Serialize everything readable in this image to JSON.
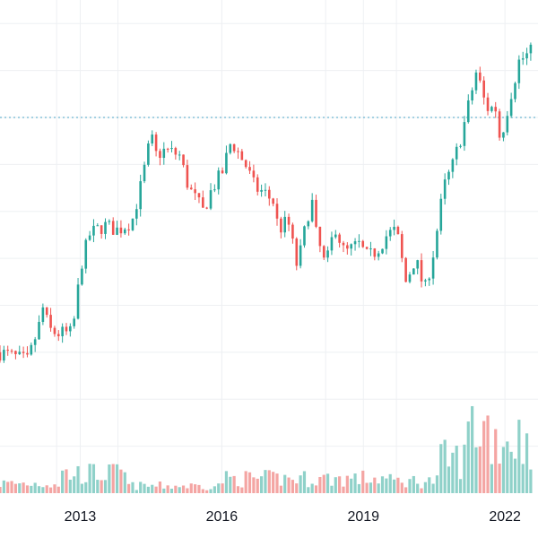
{
  "colors": {
    "up": "#26a69a",
    "down": "#ef5350",
    "up_volume": "#8fd1c9",
    "down_volume": "#f4a5a3",
    "grid": "#eef0f3",
    "price_line": "#4aa3c5",
    "background": "#ffffff",
    "text": "#131722"
  },
  "chart_data": {
    "type": "candlestick",
    "title": "",
    "xlabel": "",
    "ylabel": "",
    "grid": true,
    "x_ticks": [
      {
        "label": "2013",
        "x": 2013.0
      },
      {
        "label": "2016",
        "x": 2016.0
      },
      {
        "label": "2019",
        "x": 2019.0
      },
      {
        "label": "2022",
        "x": 2022.0
      }
    ],
    "xlim": [
      2011.3,
      2022.7
    ],
    "ylim": [
      0,
      105
    ],
    "volume_ylim": [
      0,
      100
    ],
    "current_price_line": 80,
    "anchors": [
      [
        2011.3,
        30
      ],
      [
        2011.9,
        28
      ],
      [
        2011.95,
        30
      ],
      [
        2012.2,
        38
      ],
      [
        2012.25,
        45
      ],
      [
        2012.3,
        35
      ],
      [
        2012.5,
        34
      ],
      [
        2012.8,
        34
      ],
      [
        2012.9,
        38
      ],
      [
        2013.0,
        48
      ],
      [
        2013.2,
        55
      ],
      [
        2013.5,
        57
      ],
      [
        2013.8,
        56
      ],
      [
        2014.1,
        58
      ],
      [
        2014.3,
        66
      ],
      [
        2014.5,
        76
      ],
      [
        2014.6,
        72
      ],
      [
        2014.8,
        73
      ],
      [
        2015.1,
        72
      ],
      [
        2015.3,
        65
      ],
      [
        2015.6,
        60
      ],
      [
        2015.8,
        65
      ],
      [
        2016.0,
        68
      ],
      [
        2016.2,
        75
      ],
      [
        2016.5,
        70
      ],
      [
        2016.7,
        65
      ],
      [
        2016.9,
        64
      ],
      [
        2017.1,
        62
      ],
      [
        2017.2,
        56
      ],
      [
        2017.4,
        58
      ],
      [
        2017.6,
        48
      ],
      [
        2017.9,
        63
      ],
      [
        2018.0,
        55
      ],
      [
        2018.2,
        48
      ],
      [
        2018.4,
        57
      ],
      [
        2018.6,
        51
      ],
      [
        2018.9,
        53
      ],
      [
        2019.1,
        50
      ],
      [
        2019.3,
        52
      ],
      [
        2019.5,
        55
      ],
      [
        2019.7,
        56
      ],
      [
        2019.9,
        45
      ],
      [
        2020.1,
        50
      ],
      [
        2020.3,
        43
      ],
      [
        2020.5,
        52
      ],
      [
        2020.7,
        65
      ],
      [
        2020.9,
        70
      ],
      [
        2021.1,
        77
      ],
      [
        2021.4,
        90
      ],
      [
        2021.6,
        82
      ],
      [
        2021.8,
        82
      ],
      [
        2021.9,
        75
      ],
      [
        2022.1,
        84
      ],
      [
        2022.3,
        92
      ],
      [
        2022.7,
        95
      ]
    ]
  }
}
